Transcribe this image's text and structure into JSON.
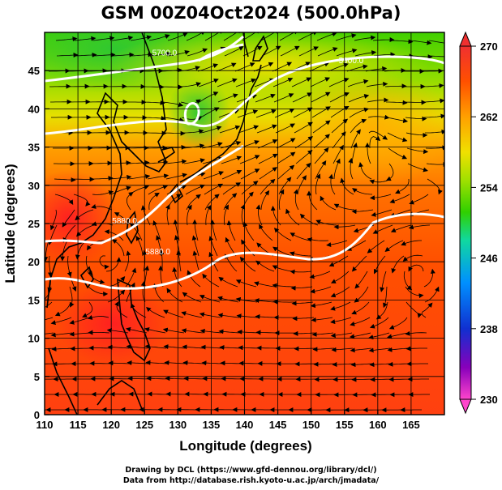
{
  "title": "GSM 00Z04Oct2024 (500.0hPa)",
  "chart_data": {
    "type": "heatmap",
    "xlabel": "Longitude (degrees)",
    "ylabel": "Latitude  (degrees)",
    "xlim": [
      110,
      170
    ],
    "ylim": [
      0,
      50
    ],
    "x_ticks": [
      "110",
      "115",
      "120",
      "125",
      "130",
      "135",
      "140",
      "145",
      "150",
      "155",
      "160",
      "165"
    ],
    "y_ticks": [
      "0",
      "5",
      "10",
      "15",
      "20",
      "25",
      "30",
      "35",
      "40",
      "45"
    ],
    "colorbar": {
      "ticks": [
        "230",
        "238",
        "246",
        "254",
        "262",
        "270"
      ],
      "range": [
        230,
        270
      ],
      "colors": [
        "#ff44cc",
        "#6600aa",
        "#1030e0",
        "#10a0ff",
        "#10e080",
        "#40d000",
        "#e8e800",
        "#ff9000",
        "#ff3000",
        "#f03030"
      ]
    },
    "contour_labels": [
      {
        "text": "5700.0",
        "lon": 128,
        "lat": 47
      },
      {
        "text": "5900.0",
        "lon": 156,
        "lat": 46
      },
      {
        "text": "5880.0",
        "lon": 122,
        "lat": 25
      },
      {
        "text": "5880.0",
        "lon": 127,
        "lat": 21
      }
    ]
  },
  "credits": {
    "line1": "Drawing by DCL (https://www.gfd-dennou.org/library/dcl/)",
    "line2": "Data from http://database.rish.kyoto-u.ac.jp/arch/jmadata/"
  },
  "colors": {
    "contour": "#ffffff",
    "streamline": "#000000",
    "coastline": "#000000"
  }
}
